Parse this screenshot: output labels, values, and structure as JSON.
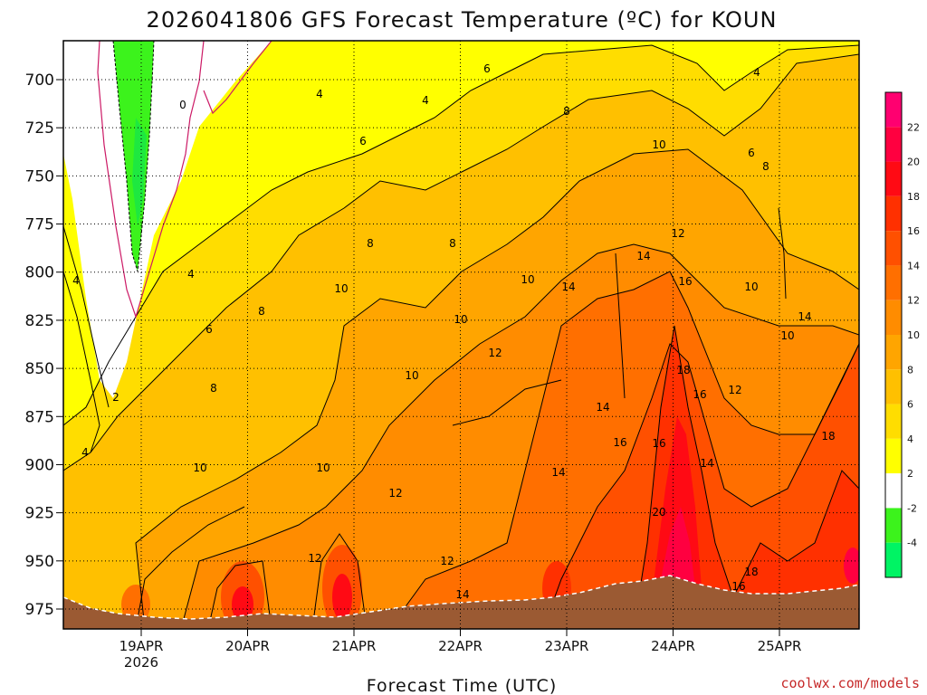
{
  "title": "2026041806 GFS Forecast Temperature (ºC) for KOUN",
  "credit": "coolwx.com/models",
  "chart_data": {
    "type": "heatmap",
    "title": "2026041806 GFS Forecast Temperature (ºC) for KOUN",
    "xlabel": "Forecast Time (UTC)",
    "ylabel": "",
    "x_ticks": [
      "19APR",
      "20APR",
      "21APR",
      "22APR",
      "23APR",
      "24APR",
      "25APR"
    ],
    "x_sub": "2026",
    "y_ticks": [
      "700",
      "725",
      "750",
      "775",
      "800",
      "825",
      "850",
      "875",
      "900",
      "925",
      "950",
      "975"
    ],
    "colorbar_levels": [
      "-4",
      "-2",
      "2",
      "4",
      "6",
      "8",
      "10",
      "12",
      "14",
      "16",
      "18",
      "20",
      "22"
    ],
    "colorbar_colors": [
      "#00f464",
      "#3cf31c",
      "#ffffff",
      "#ffff00",
      "#ffdd00",
      "#ffc000",
      "#ffa500",
      "#ff8c00",
      "#ff6f00",
      "#ff5000",
      "#ff3000",
      "#ff0a14",
      "#ff0040",
      "#ff0070"
    ],
    "contour_labels": [
      "0",
      "2",
      "4",
      "4",
      "4",
      "4",
      "4",
      "4",
      "6",
      "6",
      "6",
      "6",
      "8",
      "8",
      "8",
      "8",
      "8",
      "8",
      "10",
      "10",
      "10",
      "10",
      "10",
      "10",
      "10",
      "10",
      "10",
      "12",
      "12",
      "12",
      "12",
      "12",
      "12",
      "14",
      "14",
      "14",
      "14",
      "14",
      "14",
      "14",
      "16",
      "16",
      "16",
      "16",
      "16",
      "18",
      "18",
      "18",
      "20"
    ]
  }
}
